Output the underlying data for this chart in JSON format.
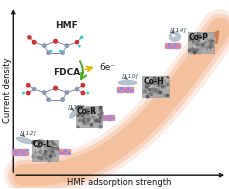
{
  "fig_width": 2.3,
  "fig_height": 1.89,
  "dpi": 100,
  "background_color": "#ffffff",
  "xlabel": "HMF adsorption strength",
  "ylabel": "Current density",
  "axis_color": "#111111",
  "arrow_body_color": "#f0a080",
  "arrow_body_color2": "#e88860",
  "hmf_label": "HMF",
  "fdca_label": "FDCA",
  "electron_label": "6e⁻",
  "co_labels": [
    "Co-L",
    "Co-R",
    "Co-H",
    "Co-P"
  ],
  "co_facets": [
    "[112]",
    "[110]",
    "[110]",
    "[114]"
  ],
  "green_arrow_color": "#44aa22",
  "yellow_arrow_color": "#ddcc00",
  "label_fontsize": 6.5,
  "axis_label_fontsize": 6.0,
  "co_label_fontsize": 5.5,
  "facet_fontsize": 4.5,
  "electron_fontsize": 6.5,
  "grid_color1": "#ee8888",
  "grid_color2": "#8888ee",
  "sem_color": "#999999",
  "shape_color": "#aaaacc"
}
